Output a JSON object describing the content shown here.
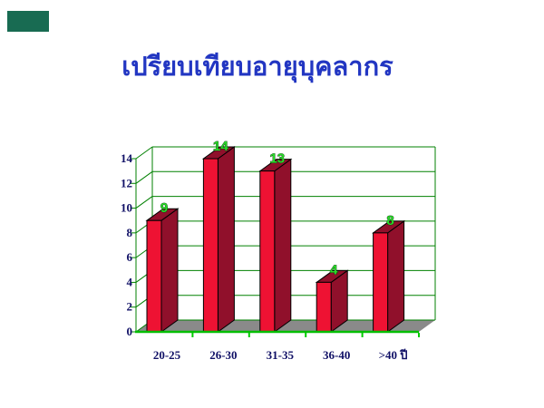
{
  "slide": {
    "title": "เปรียบเทียบอายุบุคลากร",
    "accent_bar_color": "#186B52"
  },
  "chart_data": {
    "type": "bar",
    "style": "3d-column",
    "title": "เปรียบเทียบอายุบุคลากร",
    "categories": [
      "20-25",
      "26-30",
      "31-35",
      "36-40",
      ">40 ปี"
    ],
    "values": [
      9,
      14,
      13,
      4,
      8
    ],
    "data_labels": [
      "9",
      "14",
      "13",
      "4",
      "8"
    ],
    "ylim": [
      0,
      14
    ],
    "ytick_interval": 2,
    "yticks": [
      0,
      2,
      4,
      6,
      8,
      10,
      12,
      14
    ],
    "grid": true,
    "legend": false,
    "colors": {
      "title": "#2236C2",
      "bar_front": "#EE1233",
      "bar_side": "#90102B",
      "bar_outline": "#000000",
      "gridline": "#008000",
      "axis_line": "#00BE00",
      "boundary_tick": "#00CC00",
      "data_label": "#2ADB2A",
      "data_label_outline": "#0A300A",
      "axis_text": "#101066",
      "floor": "#8A8A8A"
    }
  }
}
